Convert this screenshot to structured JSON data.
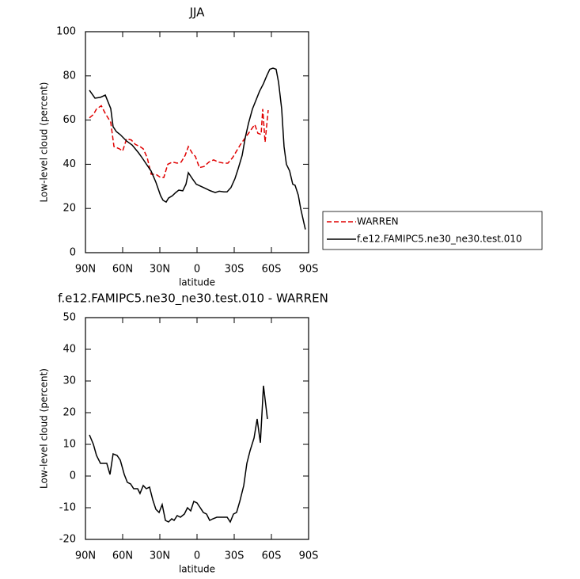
{
  "chart_data": [
    {
      "type": "line",
      "title": "JJA",
      "x_label": "latitude",
      "y_label": "Low-level cloud (percent)",
      "xlim": [
        90,
        -90
      ],
      "ylim": [
        0,
        100
      ],
      "xticks": [
        {
          "value": 90,
          "label": "90N"
        },
        {
          "value": 60,
          "label": "60N"
        },
        {
          "value": 30,
          "label": "30N"
        },
        0,
        {
          "value": -30,
          "label": "30S"
        },
        {
          "value": -60,
          "label": "60S"
        },
        {
          "value": -90,
          "label": "90S"
        }
      ],
      "yticks": [
        0,
        20,
        40,
        60,
        80,
        100
      ],
      "legend": "right",
      "series": [
        {
          "name": "WARREN",
          "color": "#e00000",
          "line_style": "dashed",
          "x": [
            86.8,
            83.6,
            81.1,
            77.2,
            74.0,
            69.6,
            67.0,
            62.6,
            60.0,
            56.8,
            53.0,
            49.8,
            46.0,
            43.4,
            40.2,
            37.0,
            33.2,
            29.4,
            26.8,
            23.6,
            19.8,
            16.0,
            12.8,
            9.6,
            7.0,
            3.8,
            1.3,
            -1.9,
            -5.7,
            -9.6,
            -13.4,
            -17.2,
            -21.7,
            -24.9,
            -28.7,
            -31.9,
            -35.1,
            -38.9,
            -42.8,
            -46.6,
            -49.1,
            -51.7,
            -53.0,
            -54.9,
            -57.4
          ],
          "values": [
            61,
            62.5,
            65,
            66.5,
            63,
            59,
            48,
            47,
            46,
            51.5,
            51,
            49,
            48,
            47,
            43,
            35.5,
            35.5,
            34,
            34,
            40,
            41,
            40.5,
            41,
            44,
            48,
            45,
            43.5,
            38.5,
            39,
            41,
            42,
            41,
            40.5,
            40.5,
            43,
            46,
            49,
            52,
            55,
            58,
            54,
            53.5,
            65,
            50,
            64.5
          ]
        },
        {
          "name": "f.e12.FAMIPC5.ne30_ne30.test.010",
          "color": "#000000",
          "line_style": "solid",
          "x": [
            86.8,
            82.3,
            77.9,
            74.0,
            69.6,
            67.7,
            65.1,
            61.9,
            56.8,
            52.3,
            47.2,
            44.0,
            40.9,
            37.0,
            33.2,
            29.4,
            27.4,
            24.9,
            23.0,
            19.8,
            17.2,
            14.7,
            11.5,
            8.9,
            7.0,
            3.8,
            0.6,
            -3.2,
            -7.0,
            -10.8,
            -14.7,
            -17.9,
            -21.7,
            -24.2,
            -27.4,
            -30.6,
            -33.2,
            -36.4,
            -38.9,
            -41.5,
            -44.7,
            -47.2,
            -50.4,
            -53.6,
            -56.2,
            -58.7,
            -61.3,
            -63.8,
            -65.8,
            -68.3,
            -70.2,
            -72.1,
            -74.7,
            -77.2,
            -79.1,
            -81.7,
            -83.6,
            -87.4
          ],
          "values": [
            73.5,
            69.9,
            70.3,
            71.3,
            65.2,
            57.0,
            54.8,
            53.4,
            50.5,
            48.7,
            45.2,
            42.7,
            40.1,
            36.9,
            31.9,
            25.8,
            23.7,
            22.9,
            24.7,
            25.8,
            27.2,
            28.3,
            28.0,
            31,
            36.2,
            33.5,
            31.0,
            30.0,
            29.0,
            28.0,
            27.2,
            27.8,
            27.5,
            27.5,
            29.5,
            33.5,
            38,
            44,
            52,
            58.5,
            65,
            68.5,
            73,
            76.5,
            80,
            83,
            83.5,
            83,
            77,
            65,
            48,
            40,
            37,
            31,
            30.5,
            26,
            20,
            10.5
          ]
        }
      ]
    },
    {
      "type": "line",
      "title": "f.e12.FAMIPC5.ne30_ne30.test.010 - WARREN",
      "x_label": "latitude",
      "y_label": "Low-level cloud (percent)",
      "xlim": [
        90,
        -90
      ],
      "ylim": [
        -20,
        50
      ],
      "xticks": [
        {
          "value": 90,
          "label": "90N"
        },
        {
          "value": 60,
          "label": "60N"
        },
        {
          "value": 30,
          "label": "30N"
        },
        0,
        {
          "value": -30,
          "label": "30S"
        },
        {
          "value": -60,
          "label": "60S"
        },
        {
          "value": -90,
          "label": "90S"
        }
      ],
      "yticks": [
        -20,
        -10,
        0,
        10,
        20,
        30,
        40,
        50
      ],
      "series": [
        {
          "color": "#000000",
          "line_style": "solid",
          "x": [
            86.8,
            83.6,
            81.1,
            77.9,
            75.3,
            72.8,
            70.2,
            67.7,
            64.5,
            61.9,
            58.7,
            56.2,
            53.6,
            51.1,
            47.9,
            46.0,
            43.4,
            40.9,
            38.3,
            35.7,
            33.2,
            30.6,
            28.1,
            25.5,
            23.0,
            20.4,
            18.5,
            16.0,
            13.4,
            10.2,
            7.7,
            5.1,
            2.6,
            0,
            -2.6,
            -5.1,
            -7.7,
            -10.2,
            -12.8,
            -16.0,
            -18.5,
            -21.7,
            -24.3,
            -26.8,
            -29.4,
            -31.9,
            -34.5,
            -37.7,
            -40.2,
            -42.8,
            -46.0,
            -48.5,
            -51.1,
            -53.6,
            -56.8
          ],
          "values": [
            13,
            10,
            6.5,
            4,
            4,
            4,
            0.5,
            7,
            6.5,
            5,
            0.5,
            -2,
            -2.5,
            -4,
            -4,
            -5.5,
            -3,
            -4,
            -3.5,
            -7.5,
            -10.5,
            -11.5,
            -9,
            -14,
            -14.5,
            -13.5,
            -14,
            -12.5,
            -13,
            -12,
            -10,
            -11,
            -8,
            -8.5,
            -10,
            -11.5,
            -12,
            -14,
            -13.5,
            -13,
            -13,
            -13,
            -13,
            -14.5,
            -12,
            -11.5,
            -8,
            -3,
            4,
            8,
            12,
            18,
            10.5,
            28.5,
            18
          ]
        }
      ]
    }
  ]
}
